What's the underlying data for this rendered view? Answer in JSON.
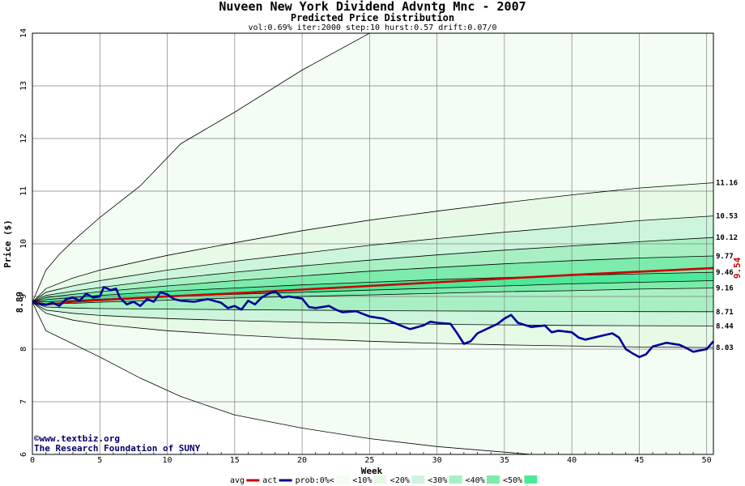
{
  "chart_data": {
    "type": "area",
    "title": "Nuveen New York Dividend Advntg Mnc - 2007",
    "subtitle": "Predicted Price Distribution",
    "params": "vol:0.69% iter:2000 step:10 hurst:0.57 drift:0.07/0",
    "xlabel": "Week",
    "ylabel": "Price ($)",
    "xlim": [
      0,
      50.5
    ],
    "ylim": [
      6,
      14
    ],
    "xticks": [
      "0",
      "5",
      "10",
      "15",
      "20",
      "25",
      "30",
      "35",
      "40",
      "45",
      "50"
    ],
    "yticks": [
      "6",
      "7",
      "8",
      "9",
      "10",
      "11",
      "12",
      "13",
      "14"
    ],
    "grid": true,
    "start_value": "8.89",
    "end_value": "9.54",
    "percentile_labels": [
      "11.16",
      "10.53",
      "10.12",
      "9.77",
      "9.46",
      "9.16",
      "8.71",
      "8.44",
      "8.03"
    ],
    "bands": [
      {
        "name": "prob:0%<",
        "color": "#f3fdf3",
        "upper": [
          [
            0,
            8.89
          ],
          [
            1,
            9.5
          ],
          [
            2,
            9.8
          ],
          [
            3,
            10.05
          ],
          [
            5,
            10.5
          ],
          [
            8,
            11.1
          ],
          [
            11,
            11.9
          ],
          [
            15,
            12.5
          ],
          [
            20,
            13.3
          ],
          [
            25,
            14.0
          ],
          [
            50.5,
            14.0
          ]
        ],
        "lower": [
          [
            0,
            8.89
          ],
          [
            1,
            8.35
          ],
          [
            3,
            8.1
          ],
          [
            5,
            7.85
          ],
          [
            8,
            7.45
          ],
          [
            11,
            7.1
          ],
          [
            15,
            6.75
          ],
          [
            20,
            6.5
          ],
          [
            25,
            6.3
          ],
          [
            30,
            6.15
          ],
          [
            37,
            6.0
          ],
          [
            50.5,
            6.0
          ]
        ]
      },
      {
        "name": "<10%",
        "color": "#e6fae6",
        "upper": [
          [
            0,
            8.89
          ],
          [
            1,
            9.15
          ],
          [
            3,
            9.35
          ],
          [
            5,
            9.5
          ],
          [
            10,
            9.78
          ],
          [
            15,
            10.02
          ],
          [
            20,
            10.25
          ],
          [
            25,
            10.45
          ],
          [
            30,
            10.62
          ],
          [
            35,
            10.78
          ],
          [
            40,
            10.93
          ],
          [
            45,
            11.06
          ],
          [
            50.5,
            11.16
          ]
        ],
        "lower": [
          [
            0,
            8.89
          ],
          [
            1,
            8.68
          ],
          [
            3,
            8.55
          ],
          [
            5,
            8.47
          ],
          [
            10,
            8.35
          ],
          [
            15,
            8.27
          ],
          [
            20,
            8.2
          ],
          [
            25,
            8.15
          ],
          [
            30,
            8.11
          ],
          [
            35,
            8.08
          ],
          [
            40,
            8.06
          ],
          [
            45,
            8.04
          ],
          [
            50.5,
            8.03
          ]
        ]
      },
      {
        "name": "<20%",
        "color": "#ccf5dc",
        "upper": [
          [
            0,
            8.89
          ],
          [
            1,
            9.08
          ],
          [
            3,
            9.2
          ],
          [
            5,
            9.3
          ],
          [
            10,
            9.5
          ],
          [
            15,
            9.67
          ],
          [
            20,
            9.82
          ],
          [
            25,
            9.97
          ],
          [
            30,
            10.1
          ],
          [
            35,
            10.22
          ],
          [
            40,
            10.33
          ],
          [
            45,
            10.44
          ],
          [
            50.5,
            10.53
          ]
        ],
        "lower": [
          [
            0,
            8.89
          ],
          [
            1,
            8.74
          ],
          [
            3,
            8.68
          ],
          [
            5,
            8.64
          ],
          [
            10,
            8.58
          ],
          [
            15,
            8.54
          ],
          [
            20,
            8.51
          ],
          [
            25,
            8.49
          ],
          [
            30,
            8.47
          ],
          [
            35,
            8.46
          ],
          [
            40,
            8.45
          ],
          [
            45,
            8.445
          ],
          [
            50.5,
            8.44
          ]
        ]
      },
      {
        "name": "<30%",
        "color": "#a8f0c4",
        "upper": [
          [
            0,
            8.89
          ],
          [
            1,
            9.02
          ],
          [
            3,
            9.1
          ],
          [
            5,
            9.17
          ],
          [
            10,
            9.33
          ],
          [
            15,
            9.46
          ],
          [
            20,
            9.58
          ],
          [
            25,
            9.69
          ],
          [
            30,
            9.79
          ],
          [
            35,
            9.88
          ],
          [
            40,
            9.96
          ],
          [
            45,
            10.04
          ],
          [
            50.5,
            10.12
          ]
        ],
        "lower": [
          [
            0,
            8.89
          ],
          [
            1,
            8.8
          ],
          [
            3,
            8.78
          ],
          [
            5,
            8.77
          ],
          [
            10,
            8.76
          ],
          [
            15,
            8.75
          ],
          [
            20,
            8.74
          ],
          [
            25,
            8.73
          ],
          [
            30,
            8.725
          ],
          [
            35,
            8.72
          ],
          [
            40,
            8.715
          ],
          [
            45,
            8.712
          ],
          [
            50.5,
            8.71
          ]
        ]
      },
      {
        "name": "<40%",
        "color": "#7cebac",
        "upper": [
          [
            0,
            8.89
          ],
          [
            1,
            8.98
          ],
          [
            3,
            9.04
          ],
          [
            5,
            9.09
          ],
          [
            10,
            9.2
          ],
          [
            15,
            9.3
          ],
          [
            20,
            9.39
          ],
          [
            25,
            9.48
          ],
          [
            30,
            9.55
          ],
          [
            35,
            9.62
          ],
          [
            40,
            9.68
          ],
          [
            45,
            9.73
          ],
          [
            50.5,
            9.77
          ]
        ],
        "lower": [
          [
            0,
            8.89
          ],
          [
            1,
            8.86
          ],
          [
            3,
            8.87
          ],
          [
            5,
            8.89
          ],
          [
            10,
            8.93
          ],
          [
            15,
            8.97
          ],
          [
            20,
            9.0
          ],
          [
            25,
            9.03
          ],
          [
            30,
            9.06
          ],
          [
            35,
            9.09
          ],
          [
            40,
            9.11
          ],
          [
            45,
            9.14
          ],
          [
            50.5,
            9.16
          ]
        ]
      },
      {
        "name": "<50%",
        "color": "#4de898",
        "upper": [
          [
            0,
            8.89
          ],
          [
            1,
            8.94
          ],
          [
            3,
            8.98
          ],
          [
            5,
            9.02
          ],
          [
            10,
            9.1
          ],
          [
            15,
            9.16
          ],
          [
            20,
            9.22
          ],
          [
            25,
            9.27
          ],
          [
            30,
            9.32
          ],
          [
            35,
            9.36
          ],
          [
            40,
            9.4
          ],
          [
            45,
            9.43
          ],
          [
            50.5,
            9.46
          ]
        ],
        "lower": [
          [
            0,
            8.89
          ],
          [
            1,
            8.9
          ],
          [
            3,
            8.92
          ],
          [
            5,
            8.95
          ],
          [
            10,
            9.0
          ],
          [
            15,
            9.04
          ],
          [
            20,
            9.08
          ],
          [
            25,
            9.12
          ],
          [
            30,
            9.16
          ],
          [
            35,
            9.2
          ],
          [
            40,
            9.24
          ],
          [
            45,
            9.27
          ],
          [
            50.5,
            9.3
          ]
        ]
      }
    ],
    "series": [
      {
        "name": "avg",
        "color": "#cc0000",
        "points": [
          [
            0,
            8.89
          ],
          [
            1,
            8.85
          ],
          [
            2,
            8.87
          ],
          [
            3,
            8.9
          ],
          [
            5,
            8.93
          ],
          [
            10,
            9.0
          ],
          [
            15,
            9.06
          ],
          [
            20,
            9.13
          ],
          [
            25,
            9.2
          ],
          [
            30,
            9.27
          ],
          [
            35,
            9.34
          ],
          [
            40,
            9.41
          ],
          [
            45,
            9.47
          ],
          [
            50.5,
            9.54
          ]
        ]
      },
      {
        "name": "act",
        "color": "#000099",
        "points": [
          [
            0,
            8.89
          ],
          [
            0.5,
            8.86
          ],
          [
            1,
            8.84
          ],
          [
            1.5,
            8.88
          ],
          [
            2,
            8.82
          ],
          [
            2.5,
            8.95
          ],
          [
            3,
            8.98
          ],
          [
            3.5,
            8.92
          ],
          [
            4,
            9.05
          ],
          [
            4.5,
            8.98
          ],
          [
            5,
            9.0
          ],
          [
            5.3,
            9.18
          ],
          [
            5.8,
            9.12
          ],
          [
            6.2,
            9.15
          ],
          [
            6.5,
            8.97
          ],
          [
            7,
            8.85
          ],
          [
            7.5,
            8.9
          ],
          [
            8,
            8.82
          ],
          [
            8.5,
            8.95
          ],
          [
            9,
            8.9
          ],
          [
            9.5,
            9.08
          ],
          [
            10,
            9.04
          ],
          [
            10.5,
            8.95
          ],
          [
            11,
            8.92
          ],
          [
            12,
            8.9
          ],
          [
            13,
            8.95
          ],
          [
            14,
            8.88
          ],
          [
            14.5,
            8.78
          ],
          [
            15,
            8.82
          ],
          [
            15.5,
            8.75
          ],
          [
            16,
            8.92
          ],
          [
            16.5,
            8.85
          ],
          [
            17,
            8.98
          ],
          [
            17.5,
            9.05
          ],
          [
            18,
            9.1
          ],
          [
            18.5,
            8.98
          ],
          [
            19,
            9.0
          ],
          [
            20,
            8.96
          ],
          [
            20.5,
            8.8
          ],
          [
            21,
            8.78
          ],
          [
            22,
            8.82
          ],
          [
            22.5,
            8.75
          ],
          [
            23,
            8.7
          ],
          [
            24,
            8.72
          ],
          [
            25,
            8.62
          ],
          [
            26,
            8.58
          ],
          [
            27,
            8.48
          ],
          [
            28,
            8.38
          ],
          [
            29,
            8.45
          ],
          [
            29.5,
            8.52
          ],
          [
            30,
            8.5
          ],
          [
            31,
            8.48
          ],
          [
            31.5,
            8.3
          ],
          [
            32,
            8.1
          ],
          [
            32.5,
            8.15
          ],
          [
            33,
            8.3
          ],
          [
            34,
            8.42
          ],
          [
            34.5,
            8.48
          ],
          [
            35,
            8.58
          ],
          [
            35.5,
            8.65
          ],
          [
            36,
            8.5
          ],
          [
            37,
            8.42
          ],
          [
            38,
            8.45
          ],
          [
            38.5,
            8.32
          ],
          [
            39,
            8.35
          ],
          [
            40,
            8.32
          ],
          [
            40.5,
            8.22
          ],
          [
            41,
            8.18
          ],
          [
            42,
            8.24
          ],
          [
            43,
            8.3
          ],
          [
            43.5,
            8.22
          ],
          [
            44,
            8.0
          ],
          [
            44.5,
            7.92
          ],
          [
            45,
            7.85
          ],
          [
            45.5,
            7.9
          ],
          [
            46,
            8.05
          ],
          [
            47,
            8.12
          ],
          [
            48,
            8.08
          ],
          [
            48.5,
            8.02
          ],
          [
            49,
            7.95
          ],
          [
            50,
            8.0
          ],
          [
            50.5,
            8.15
          ]
        ]
      }
    ],
    "legend": {
      "placement": "bottom",
      "items": [
        "avg",
        "act",
        "prob:0%<",
        "<10%",
        "<20%",
        "<30%",
        "<40%",
        "<50%"
      ]
    },
    "credits": [
      "©www.textbiz.org",
      "The Research Foundation of SUNY"
    ]
  }
}
